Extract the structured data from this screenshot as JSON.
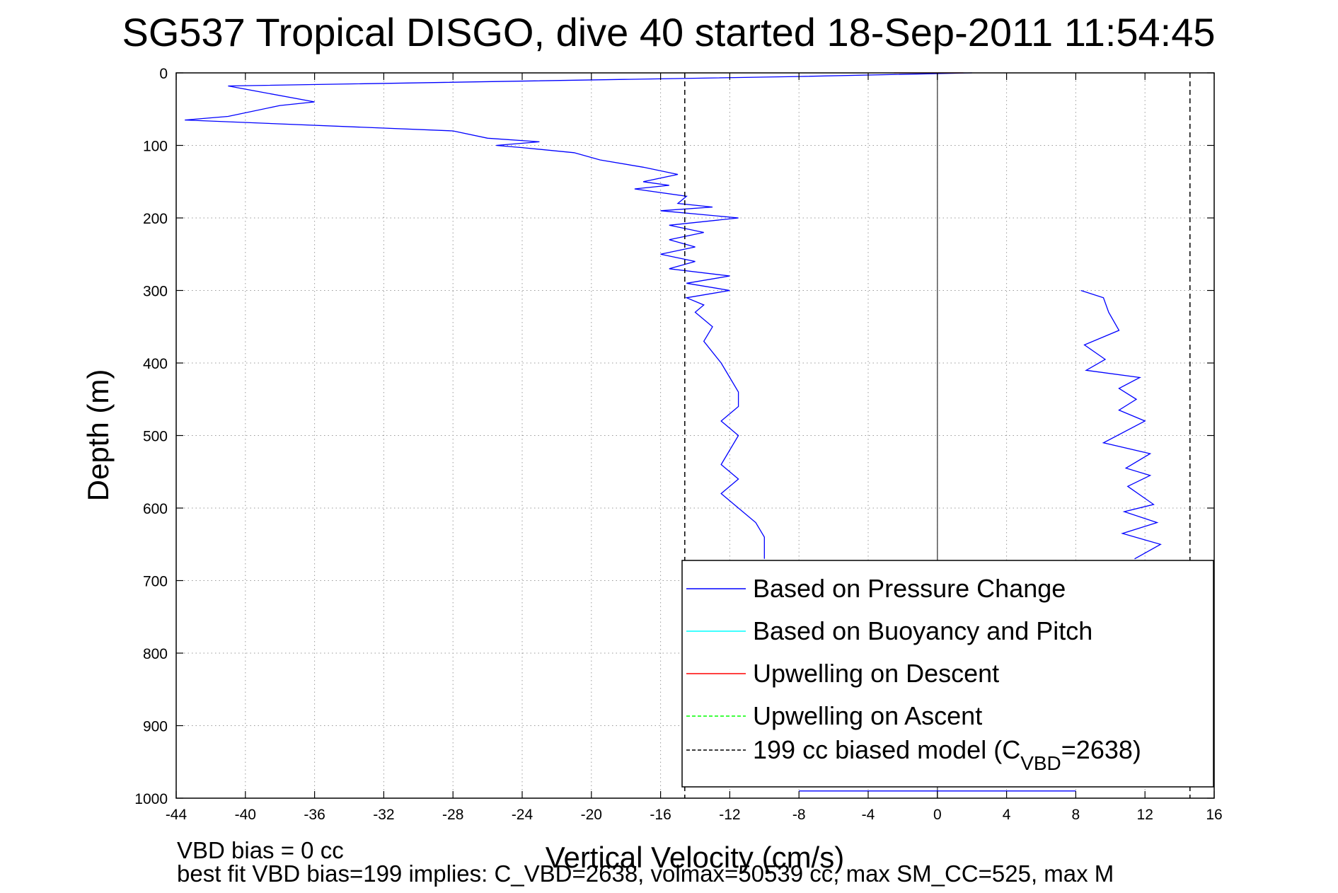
{
  "chart_data": {
    "type": "line",
    "title": "SG537 Tropical DISGO, dive 40 started 18-Sep-2011 11:54:45",
    "xlabel": "Vertical Velocity (cm/s)",
    "ylabel": "Depth (m)",
    "xlim": [
      -44,
      16
    ],
    "ylim": [
      0,
      1000
    ],
    "y_reversed": true,
    "grid": true,
    "xticks": [
      -44,
      -40,
      -36,
      -32,
      -28,
      -24,
      -20,
      -16,
      -12,
      -8,
      -4,
      0,
      4,
      8,
      12,
      16
    ],
    "yticks": [
      0,
      100,
      200,
      300,
      400,
      500,
      600,
      700,
      800,
      900,
      1000
    ],
    "legend_position": "bottom-right",
    "legend": [
      {
        "label": "Based on Pressure Change",
        "color": "#0000ff",
        "style": "solid"
      },
      {
        "label": "Based on Buoyancy and Pitch",
        "color": "#00ffff",
        "style": "solid"
      },
      {
        "label": "Upwelling on Descent",
        "color": "#ff0000",
        "style": "solid"
      },
      {
        "label": "Upwelling on Ascent",
        "color": "#00ff00",
        "style": "dashed"
      },
      {
        "label_prefix": "199 cc biased model (C",
        "label_sub": "VBD",
        "label_suffix": "=2638)",
        "color": "#000000",
        "style": "dashed"
      }
    ],
    "series": [
      {
        "name": "Based on Pressure Change",
        "color": "#0000ff",
        "segments": [
          {
            "x": [
              2,
              -8,
              -41,
              -36,
              -38,
              -41,
              -43.5,
              -28,
              -26,
              -23,
              -25.5,
              -24,
              -21,
              -19.5,
              -17,
              -15,
              -17,
              -15.5,
              -17.5,
              -14.5,
              -15,
              -13,
              -16,
              -11.5,
              -15.5,
              -13.5,
              -15.5,
              -14,
              -16,
              -14,
              -15.5,
              -12,
              -14.5,
              -12,
              -14.5,
              -13.5,
              -14,
              -13,
              -13.5,
              -12.5,
              -12,
              -11.5,
              -11.5,
              -12.5,
              -11.5,
              -12,
              -12.5,
              -11.5,
              -12.5,
              -12,
              -11.5,
              -10.5,
              -10,
              -10,
              -10
            ],
            "y": [
              0,
              5,
              18,
              40,
              45,
              60,
              65,
              80,
              90,
              95,
              100,
              103,
              110,
              120,
              130,
              140,
              150,
              155,
              160,
              170,
              180,
              185,
              190,
              200,
              210,
              220,
              230,
              240,
              250,
              260,
              270,
              280,
              290,
              300,
              310,
              320,
              330,
              350,
              370,
              400,
              420,
              440,
              460,
              480,
              500,
              520,
              540,
              560,
              580,
              590,
              600,
              620,
              640,
              660,
              670
            ]
          },
          {
            "x": [
              8.3,
              9.6,
              9.9,
              10.5,
              8.5,
              9.7,
              8.6,
              11.7,
              10.5,
              11.5,
              10.5,
              12,
              9.6,
              12.3,
              10.9,
              12.3,
              11,
              12.5,
              10.8,
              12.7,
              10.7,
              12.9,
              11.4
            ],
            "y": [
              300,
              310,
              330,
              355,
              375,
              395,
              410,
              420,
              435,
              450,
              465,
              480,
              510,
              525,
              545,
              555,
              570,
              595,
              605,
              620,
              635,
              650,
              670
            ]
          },
          {
            "x": [
              -8,
              8
            ],
            "y": [
              990,
              990
            ]
          }
        ]
      },
      {
        "name": "Upwelling on Descent",
        "color": "#ff0000",
        "segments": [
          {
            "x": [
              -2.5,
              1.5
            ],
            "y": [
              0,
              0
            ]
          }
        ]
      },
      {
        "name": "199 cc biased model",
        "color": "#000000",
        "style": "dashed",
        "segments": [
          {
            "x": [
              -14.6,
              -14.6
            ],
            "y": [
              0,
              1000
            ]
          },
          {
            "x": [
              14.6,
              14.6
            ],
            "y": [
              0,
              1000
            ]
          }
        ]
      }
    ]
  },
  "footer": {
    "line1": "VBD bias = 0 cc",
    "line2": "best fit VBD bias=199 implies: C_VBD=2638, volmax=50539 cc, max SM_CC=525, max M"
  }
}
